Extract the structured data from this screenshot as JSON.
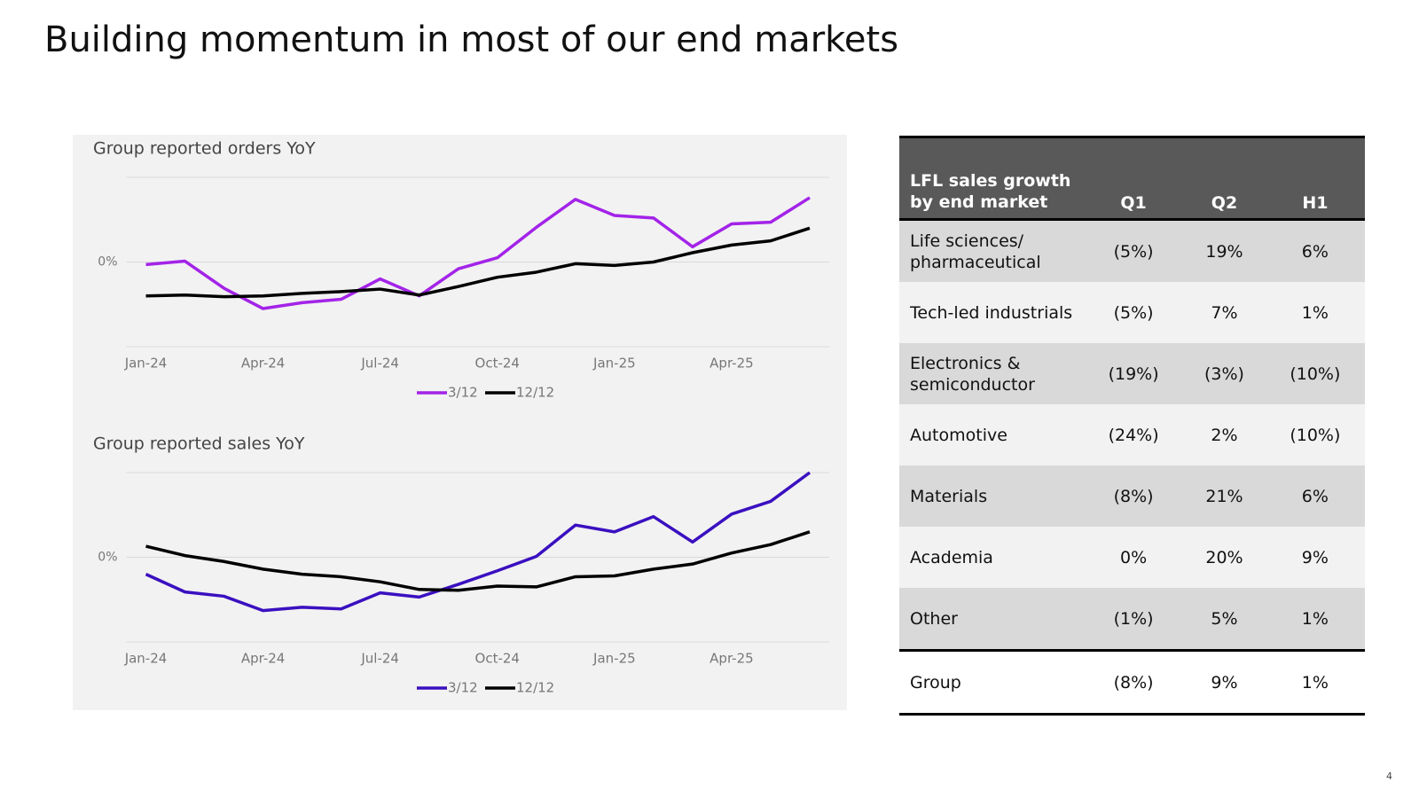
{
  "title": "Building momentum in most of our end markets",
  "page_number": "4",
  "chart_data": [
    {
      "type": "line",
      "title": "Group reported orders YoY",
      "categories": [
        "Jan-24",
        null,
        null,
        "Apr-24",
        null,
        null,
        "Jul-24",
        null,
        null,
        "Oct-24",
        null,
        null,
        "Jan-25",
        null,
        null,
        "Apr-25",
        null,
        null
      ],
      "series": [
        {
          "name": "3/12",
          "color": "#a323e8",
          "values": [
            -0.3,
            0.1,
            -3.1,
            -5.5,
            -4.8,
            -4.4,
            -2.0,
            -4.0,
            -0.8,
            0.5,
            4.1,
            7.4,
            5.5,
            5.2,
            1.8,
            4.5,
            4.7,
            7.6
          ]
        },
        {
          "name": "12/12",
          "color": "#000000",
          "values": [
            -4.0,
            -3.9,
            -4.1,
            -4.0,
            -3.7,
            -3.5,
            -3.2,
            -3.9,
            -2.9,
            -1.8,
            -1.2,
            -0.2,
            -0.4,
            0,
            1.1,
            2.0,
            2.5,
            4.0
          ]
        }
      ],
      "ylim": [
        -10,
        10
      ],
      "yticks": [
        {
          "value": 0,
          "label": "0%"
        }
      ],
      "grid": true,
      "legend": "bottom"
    },
    {
      "type": "line",
      "title": "Group reported sales YoY",
      "categories": [
        "Jan-24",
        null,
        null,
        "Apr-24",
        null,
        null,
        "Jul-24",
        null,
        null,
        "Oct-24",
        null,
        null,
        "Jan-25",
        null,
        null,
        "Apr-25",
        null,
        null
      ],
      "series": [
        {
          "name": "3/12",
          "color": "#3a10c0",
          "values": [
            -2.0,
            -4.1,
            -4.6,
            -6.3,
            -5.9,
            -6.1,
            -4.2,
            -4.7,
            -3.2,
            -1.6,
            0.1,
            3.8,
            3.0,
            4.8,
            1.8,
            5.1,
            6.6,
            10.0
          ]
        },
        {
          "name": "12/12",
          "color": "#000000",
          "values": [
            1.3,
            0.2,
            -0.5,
            -1.4,
            -2.0,
            -2.3,
            -2.9,
            -3.8,
            -3.9,
            -3.4,
            -3.5,
            -2.3,
            -2.2,
            -1.4,
            -0.8,
            0.5,
            1.5,
            3.0
          ]
        }
      ],
      "ylim": [
        -10,
        10
      ],
      "yticks": [
        {
          "value": 0,
          "label": "0%"
        }
      ],
      "grid": true,
      "legend": "bottom"
    }
  ],
  "table": {
    "header": [
      "LFL sales growth by end market",
      "Q1",
      "Q2",
      "H1"
    ],
    "rows": [
      [
        "Life sciences/ pharmaceutical",
        "(5%)",
        "19%",
        "6%"
      ],
      [
        "Tech-led industrials",
        "(5%)",
        "7%",
        "1%"
      ],
      [
        "Electronics & semiconductor",
        "(19%)",
        "(3%)",
        "(10%)"
      ],
      [
        "Automotive",
        "(24%)",
        "2%",
        "(10%)"
      ],
      [
        "Materials",
        "(8%)",
        "21%",
        "6%"
      ],
      [
        "Academia",
        "0%",
        "20%",
        "9%"
      ],
      [
        "Other",
        "(1%)",
        "5%",
        "1%"
      ],
      [
        "Group",
        "(8%)",
        "9%",
        "1%"
      ]
    ]
  }
}
